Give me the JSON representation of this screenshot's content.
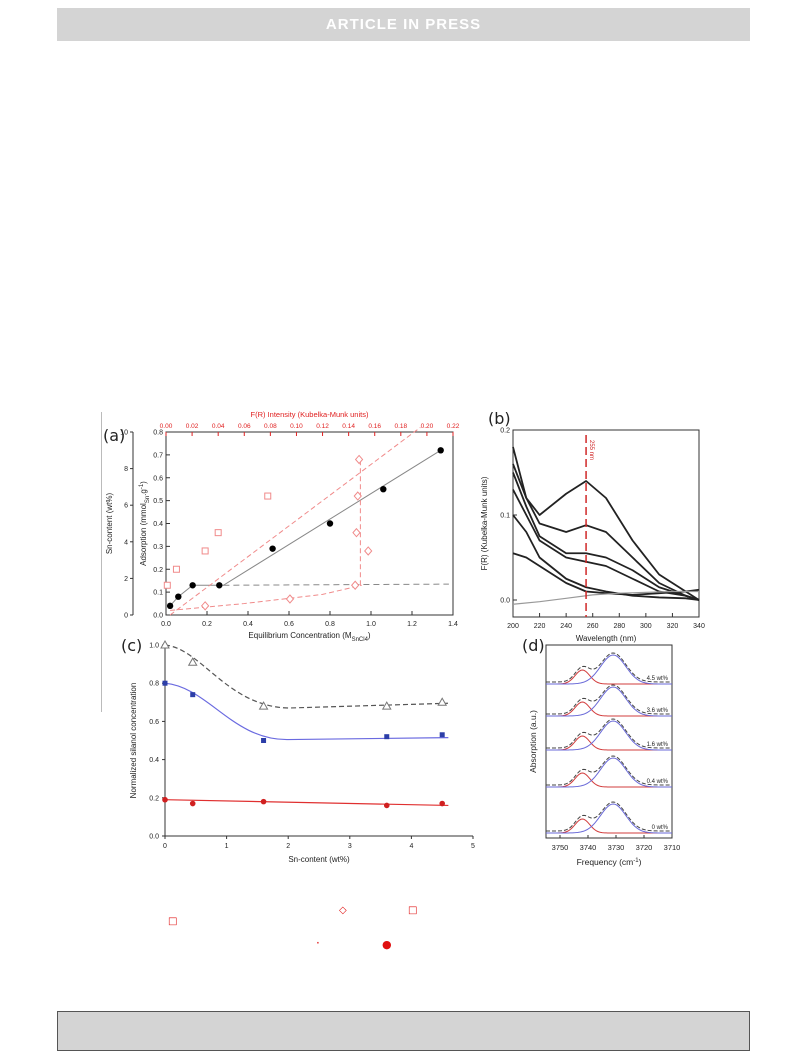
{
  "header": {
    "label": "ARTICLE  IN  PRESS"
  },
  "panels": {
    "a": "(a)",
    "b": "(b)",
    "c": "(c)",
    "d": "(d)"
  },
  "colors": {
    "red": "#e02020",
    "pink": "#f08a8a",
    "blue": "#5a5ad8",
    "gray": "#666666"
  },
  "chart_data": [
    {
      "panel": "a",
      "type": "scatter",
      "title": "",
      "xlabel": "Equilibrium Concentration (M",
      "xlabel_sub": "SnCl4",
      "xlabel_end": ")",
      "ylabel": "Adsorption (mmol",
      "ylabel_sub": "Sn",
      "ylabel_end": ".g",
      "ylabel_sup": "-1",
      "ylabel_close": ")",
      "ylabel_left": "Sn-content (wt%)",
      "top_xlabel": "F(R) Intensity (Kubelka-Munk units)",
      "xlim": [
        0,
        1.4
      ],
      "ylim": [
        0,
        0.8
      ],
      "xticks": [
        "0.0",
        "0.2",
        "0.4",
        "0.6",
        "0.8",
        "1.0",
        "1.2",
        "1.4"
      ],
      "yticks": [
        "0.0",
        "0.1",
        "0.2",
        "0.3",
        "0.4",
        "0.5",
        "0.6",
        "0.7",
        "0.8"
      ],
      "left_ticks": [
        "0",
        "2",
        "4",
        "6",
        "8",
        "10"
      ],
      "top_lim": [
        0,
        0.22
      ],
      "top_ticks": [
        "0.00",
        "0.02",
        "0.04",
        "0.06",
        "0.08",
        "0.10",
        "0.12",
        "0.14",
        "0.16",
        "0.18",
        "0.20",
        "0.22"
      ],
      "series": [
        {
          "marker": "filled-circle",
          "x": [
            0.02,
            0.06,
            0.13,
            0.26,
            0.52,
            0.8,
            1.06,
            1.34
          ],
          "y": [
            0.04,
            0.08,
            0.13,
            0.13,
            0.29,
            0.4,
            0.55,
            0.72
          ]
        },
        {
          "marker": "open-square",
          "axis": "top",
          "x": [
            0.001,
            0.008,
            0.03,
            0.04,
            0.078
          ],
          "y": [
            0.13,
            0.2,
            0.28,
            0.36,
            0.52
          ]
        },
        {
          "marker": "open-diamond",
          "axis": "top",
          "x": [
            0.03,
            0.095,
            0.145,
            0.146,
            0.147,
            0.148,
            0.155
          ],
          "y": [
            0.04,
            0.07,
            0.13,
            0.36,
            0.52,
            0.68,
            0.28
          ]
        }
      ]
    },
    {
      "panel": "b",
      "type": "line",
      "title": "",
      "xlabel": "Wavelength (nm)",
      "ylabel": "F(R) (Kubelka-Munk units)",
      "xlim": [
        200,
        340
      ],
      "ylim": [
        -0.02,
        0.2
      ],
      "xticks": [
        "200",
        "220",
        "240",
        "260",
        "280",
        "300",
        "320",
        "340"
      ],
      "yticks": [
        "0.0",
        "0.1",
        "0.2"
      ],
      "marker_line": {
        "x": 255,
        "label": "255 nm"
      },
      "series": [
        {
          "x": [
            200,
            210,
            220,
            240,
            255,
            270,
            290,
            310,
            330,
            340
          ],
          "y": [
            0.18,
            0.12,
            0.1,
            0.125,
            0.14,
            0.12,
            0.07,
            0.03,
            0.01,
            0.0
          ]
        },
        {
          "x": [
            200,
            210,
            220,
            240,
            255,
            270,
            290,
            310,
            330,
            340
          ],
          "y": [
            0.16,
            0.12,
            0.09,
            0.08,
            0.088,
            0.08,
            0.05,
            0.02,
            0.005,
            0.0
          ]
        },
        {
          "x": [
            200,
            210,
            220,
            240,
            255,
            270,
            290,
            310,
            330,
            340
          ],
          "y": [
            0.15,
            0.11,
            0.075,
            0.055,
            0.055,
            0.05,
            0.035,
            0.015,
            0.005,
            0.0
          ]
        },
        {
          "x": [
            200,
            210,
            220,
            240,
            255,
            270,
            290,
            310,
            330,
            340
          ],
          "y": [
            0.13,
            0.1,
            0.07,
            0.05,
            0.045,
            0.04,
            0.025,
            0.01,
            0.005,
            0.0
          ]
        },
        {
          "x": [
            200,
            210,
            220,
            240,
            255,
            270,
            290,
            310,
            330,
            340
          ],
          "y": [
            0.1,
            0.08,
            0.05,
            0.025,
            0.015,
            0.01,
            0.005,
            0.003,
            0.002,
            0.0
          ]
        },
        {
          "x": [
            200,
            210,
            220,
            240,
            255,
            270,
            290,
            310,
            330,
            340
          ],
          "y": [
            0.055,
            0.05,
            0.04,
            0.02,
            0.01,
            0.008,
            0.006,
            0.008,
            0.01,
            0.012
          ]
        },
        {
          "x": [
            200,
            220,
            240,
            260,
            280,
            300,
            320,
            340
          ],
          "y": [
            -0.005,
            -0.002,
            0.002,
            0.006,
            0.008,
            0.009,
            0.01,
            0.01
          ],
          "color": "gray"
        }
      ]
    },
    {
      "panel": "c",
      "type": "scatter",
      "title": "",
      "xlabel": "Sn-content (wt%)",
      "ylabel": "Normalized silanol concentration",
      "xlim": [
        0,
        5
      ],
      "ylim": [
        0,
        1.0
      ],
      "xticks": [
        "0",
        "1",
        "2",
        "3",
        "4",
        "5"
      ],
      "yticks": [
        "0.0",
        "0.2",
        "0.4",
        "0.6",
        "0.8",
        "1.0"
      ],
      "series": [
        {
          "marker": "open-triangle",
          "color": "gray",
          "x": [
            0,
            0.45,
            1.6,
            3.6,
            4.5
          ],
          "y": [
            1.0,
            0.91,
            0.68,
            0.68,
            0.7
          ]
        },
        {
          "marker": "filled-square",
          "color": "blue",
          "x": [
            0,
            0.45,
            1.6,
            3.6,
            4.5
          ],
          "y": [
            0.8,
            0.74,
            0.5,
            0.52,
            0.53
          ]
        },
        {
          "marker": "filled-circle",
          "color": "red",
          "x": [
            0,
            0.45,
            1.6,
            3.6,
            4.5
          ],
          "y": [
            0.19,
            0.17,
            0.18,
            0.16,
            0.17
          ]
        }
      ]
    },
    {
      "panel": "d",
      "type": "line",
      "title": "",
      "xlabel": "Frequency (cm",
      "xlabel_sup": "-1",
      "xlabel_end": ")",
      "ylabel": "Absorption (a.u.)",
      "xlim": [
        3755,
        3710
      ],
      "xticks": [
        "3750",
        "3740",
        "3730",
        "3720",
        "3710"
      ],
      "series": [
        {
          "name": "4.5 wt%"
        },
        {
          "name": "3.6 wt%"
        },
        {
          "name": "1.6 wt%"
        },
        {
          "name": "0.4 wt%"
        },
        {
          "name": "0 wt%"
        }
      ]
    }
  ],
  "caption_symbols": {
    "diamond": "◇",
    "square": "□",
    "dot": "·",
    "filled_circle": "●"
  }
}
